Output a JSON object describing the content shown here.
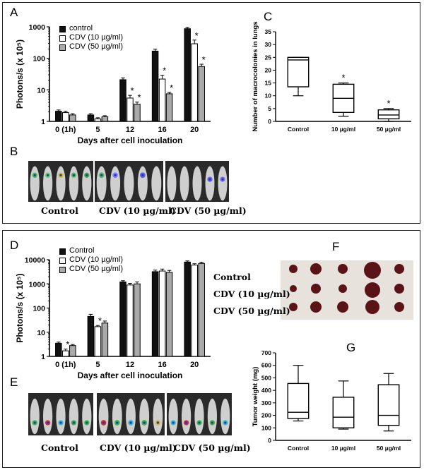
{
  "panels": {
    "A": "A",
    "B": "B",
    "C": "C",
    "D": "D",
    "E": "E",
    "F": "F",
    "G": "G"
  },
  "colors": {
    "control": "#111111",
    "cdv10": "#ffffff",
    "cdv50": "#aaaaaa"
  },
  "chart_data": [
    {
      "id": "A",
      "type": "bar",
      "scale": "log",
      "xlabel": "Days after cell inoculation",
      "ylabel": "Photons/s (x 10⁵)",
      "ylim": [
        1,
        1000
      ],
      "yticks": [
        "1",
        "10",
        "100",
        "1000"
      ],
      "categories": [
        "0 (1h)",
        "5",
        "12",
        "16",
        "20"
      ],
      "series": [
        {
          "name": "control",
          "values": [
            2.1,
            1.6,
            21,
            170,
            870
          ],
          "errors": [
            0.2,
            0.15,
            3,
            25,
            90
          ]
        },
        {
          "name": "CDV (10 µg/ml)",
          "values": [
            1.9,
            1.2,
            5.5,
            22,
            290
          ],
          "errors": [
            0.2,
            0.1,
            1.2,
            7,
            90
          ]
        },
        {
          "name": "CDV (50 µg/ml)",
          "values": [
            1.6,
            1.4,
            3.5,
            7.5,
            55
          ],
          "errors": [
            0.15,
            0.12,
            0.6,
            0.8,
            10
          ]
        }
      ],
      "sig": [
        {
          "cat": 2,
          "series": 1
        },
        {
          "cat": 2,
          "series": 2
        },
        {
          "cat": 3,
          "series": 1
        },
        {
          "cat": 3,
          "series": 2
        },
        {
          "cat": 4,
          "series": 1
        },
        {
          "cat": 4,
          "series": 2
        }
      ]
    },
    {
      "id": "C",
      "type": "box",
      "ylabel": "Number of macrocolonies in lungs",
      "ylim": [
        0,
        35
      ],
      "yticks": [
        "0",
        "5",
        "10",
        "15",
        "20",
        "25",
        "30",
        "35"
      ],
      "categories": [
        "Control",
        "10 µg/ml",
        "50 µg/ml"
      ],
      "boxes": [
        {
          "min": 10,
          "q1": 13.5,
          "median": 24,
          "q3": 25,
          "max": 25
        },
        {
          "min": 2,
          "q1": 3.5,
          "median": 9,
          "q3": 14.5,
          "max": 15
        },
        {
          "min": 0,
          "q1": 1,
          "median": 2.5,
          "q3": 4.5,
          "max": 5
        }
      ],
      "sig": [
        1,
        2
      ]
    },
    {
      "id": "D",
      "type": "bar",
      "scale": "log",
      "xlabel": "Days after cell inoculation",
      "ylabel": "Photons/s (x 10⁵)",
      "ylim": [
        1,
        10000
      ],
      "yticks": [
        "1",
        "10",
        "100",
        "1000",
        "10000"
      ],
      "categories": [
        "0 (1h)",
        "5",
        "12",
        "16",
        "20"
      ],
      "series": [
        {
          "name": "Control",
          "values": [
            3.5,
            45,
            1200,
            3200,
            8000
          ],
          "errors": [
            0.4,
            10,
            150,
            500,
            900
          ]
        },
        {
          "name": "CDV (10 µg/ml)",
          "values": [
            1.7,
            17,
            900,
            3400,
            6000
          ],
          "errors": [
            0.3,
            2,
            150,
            700,
            800
          ]
        },
        {
          "name": "CDV (50 µg/ml)",
          "values": [
            2.8,
            24,
            1000,
            3000,
            7000
          ],
          "errors": [
            0.3,
            5,
            200,
            600,
            900
          ]
        }
      ],
      "sig": [
        {
          "cat": 0,
          "series": 1
        },
        {
          "cat": 1,
          "series": 1
        }
      ]
    },
    {
      "id": "G",
      "type": "box",
      "ylabel": "Tumor weight (mg)",
      "ylim": [
        0,
        700
      ],
      "yticks": [
        "0",
        "100",
        "200",
        "300",
        "400",
        "500",
        "600",
        "700"
      ],
      "categories": [
        "Control",
        "10 µg/ml",
        "50 µg/ml"
      ],
      "boxes": [
        {
          "min": 155,
          "q1": 175,
          "median": 225,
          "q3": 455,
          "max": 600
        },
        {
          "min": 90,
          "q1": 100,
          "median": 185,
          "q3": 345,
          "max": 475
        },
        {
          "min": 75,
          "q1": 120,
          "median": 200,
          "q3": 445,
          "max": 535
        }
      ],
      "sig": []
    }
  ],
  "imaging": {
    "B_labels": [
      "Control",
      "CDV (10 µg/ml)",
      "CDV (50 µg/ml)"
    ],
    "E_labels": [
      "Control",
      "CDV (10 µg/ml)",
      "CDV (50 µg/ml)"
    ],
    "F_labels": [
      "Control",
      "CDV (10 µg/ml)",
      "CDV (50 µg/ml)"
    ]
  }
}
